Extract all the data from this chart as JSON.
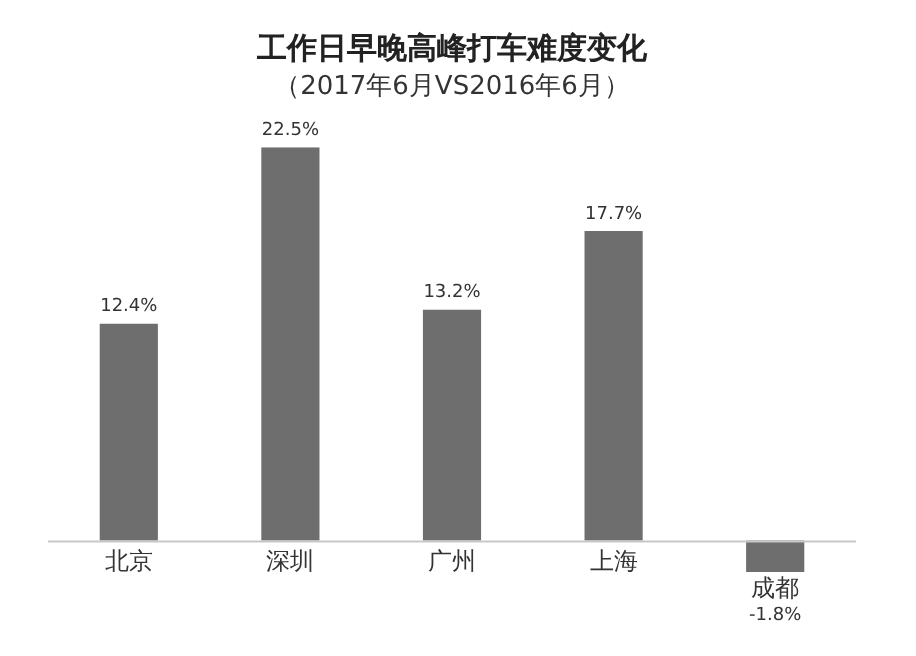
{
  "chart_data": {
    "type": "bar",
    "title": "工作日早晚高峰打车难度变化",
    "subtitle": "（2017年6月VS2016年6月）",
    "categories": [
      "北京",
      "深圳",
      "广州",
      "上海",
      "成都"
    ],
    "values": [
      12.4,
      22.5,
      13.2,
      17.7,
      -1.8
    ],
    "value_labels": [
      "12.4%",
      "22.5%",
      "13.2%",
      "17.7%",
      "-1.8%"
    ],
    "color": "#6e6e6e"
  }
}
